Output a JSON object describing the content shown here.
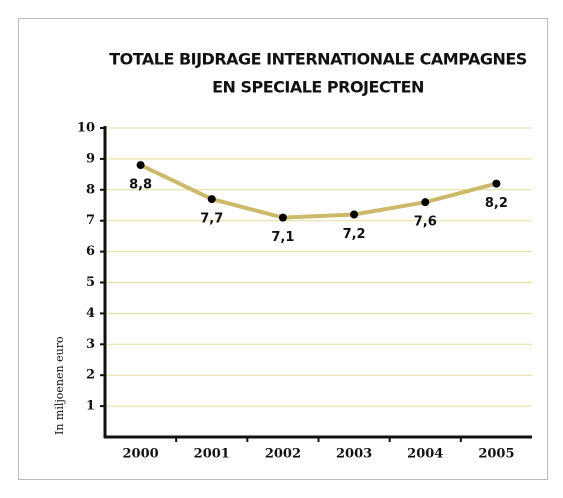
{
  "chart_data": {
    "type": "line",
    "title": [
      "TOTALE BIJDRAGE INTERNATIONALE CAMPAGNES",
      "EN SPECIALE PROJECTEN"
    ],
    "y_label": "In miljoenen euro",
    "categories": [
      "2000",
      "2001",
      "2002",
      "2003",
      "2004",
      "2005"
    ],
    "values": [
      8.8,
      7.7,
      7.1,
      7.2,
      7.6,
      8.2
    ],
    "value_labels": [
      "8,8",
      "7,7",
      "7,1",
      "7,2",
      "7,6",
      "8,2"
    ],
    "color": "#cdb96a",
    "marker_color": "#000000",
    "grid_color": "#e6dc9c",
    "ylim": [
      0,
      10
    ],
    "yticks": [
      1,
      2,
      3,
      4,
      5,
      6,
      7,
      8,
      9,
      10
    ],
    "grid": true
  }
}
